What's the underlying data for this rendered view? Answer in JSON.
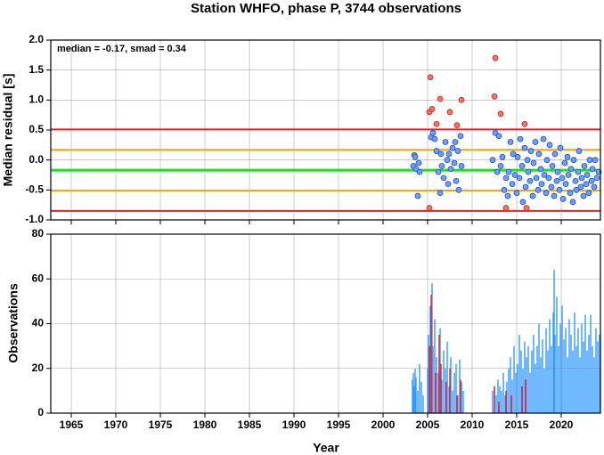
{
  "chart_data": [
    {
      "type": "scatter",
      "title": "Station WHFO, phase P, 3744 observations",
      "ylabel": "Median residual [s]",
      "annotation": "median = -0.17, smad = 0.34",
      "xlim": [
        1962.7,
        2024.4
      ],
      "xticks": [
        1965,
        1970,
        1975,
        1980,
        1985,
        1990,
        1995,
        2000,
        2005,
        2010,
        2015,
        2020
      ],
      "ylim": [
        -1.0,
        2.0
      ],
      "yticks": [
        {
          "value": 2,
          "label": "2.0"
        },
        1.5,
        {
          "value": 1,
          "label": "1.0"
        },
        0.5,
        {
          "value": 0,
          "label": "0.0"
        },
        -0.5,
        {
          "value": -1,
          "label": "-1.0"
        }
      ],
      "grid": true,
      "hlines": [
        {
          "value": 0.51,
          "color": "#e8202a"
        },
        {
          "value": 0.17,
          "color": "#ffa500"
        },
        {
          "value": -0.17,
          "color": "#22dd22"
        },
        {
          "value": -0.51,
          "color": "#ffa500"
        },
        {
          "value": -0.85,
          "color": "#e8202a"
        }
      ],
      "series": [
        {
          "color": "#6f9dff",
          "edge": "#2050c0",
          "x": [
            2003.4,
            2003.5,
            2003.6,
            2003.7,
            2003.9,
            2004.0,
            2004.1,
            2005.4,
            2005.6,
            2005.8,
            2006.0,
            2006.2,
            2006.4,
            2006.5,
            2006.6,
            2006.8,
            2007.0,
            2007.2,
            2007.3,
            2007.4,
            2007.6,
            2007.8,
            2008.0,
            2008.1,
            2008.2,
            2008.4,
            2008.5,
            2008.7,
            2008.8,
            2012.3,
            2012.6,
            2012.8,
            2013.0,
            2013.2,
            2013.4,
            2013.6,
            2013.8,
            2014.0,
            2014.1,
            2014.3,
            2014.5,
            2014.6,
            2014.8,
            2015.0,
            2015.1,
            2015.3,
            2015.4,
            2015.6,
            2015.7,
            2015.9,
            2016.0,
            2016.2,
            2016.3,
            2016.5,
            2016.6,
            2016.8,
            2016.9,
            2017.1,
            2017.2,
            2017.4,
            2017.5,
            2017.7,
            2017.8,
            2018.0,
            2018.1,
            2018.3,
            2018.4,
            2018.6,
            2018.7,
            2018.9,
            2019.0,
            2019.2,
            2019.3,
            2019.5,
            2019.6,
            2019.8,
            2019.9,
            2020.1,
            2020.2,
            2020.4,
            2020.5,
            2020.7,
            2020.8,
            2021.0,
            2021.1,
            2021.3,
            2021.4,
            2021.6,
            2021.7,
            2021.9,
            2022.0,
            2022.2,
            2022.3,
            2022.5,
            2022.6,
            2022.8,
            2022.9,
            2023.1,
            2023.2,
            2023.4,
            2023.5,
            2023.7,
            2023.8,
            2024.0,
            2024.2
          ],
          "values": [
            -0.1,
            0.08,
            0.05,
            -0.15,
            -0.6,
            -0.05,
            -0.2,
            0.38,
            0.45,
            0.35,
            0.15,
            -0.2,
            -0.55,
            0.1,
            -0.1,
            -0.3,
            0.3,
            0.0,
            -0.4,
            0.1,
            -0.15,
            0.2,
            -0.05,
            0.3,
            -0.35,
            0.15,
            -0.5,
            0.4,
            -0.1,
            0.0,
            0.45,
            -0.2,
            0.4,
            -0.1,
            0.05,
            -0.5,
            -0.3,
            -0.6,
            -0.2,
            0.3,
            -0.4,
            0.1,
            -0.25,
            -0.55,
            0.05,
            -0.3,
            0.35,
            -0.1,
            -0.7,
            0.2,
            -0.45,
            0.0,
            -0.2,
            -0.35,
            0.15,
            -0.6,
            -0.05,
            0.3,
            -0.3,
            -0.5,
            0.1,
            -0.15,
            -0.4,
            0.35,
            -0.25,
            -0.55,
            0.0,
            -0.3,
            0.25,
            -0.45,
            -0.1,
            -0.6,
            0.1,
            -0.35,
            -0.2,
            -0.5,
            0.2,
            -0.3,
            -0.65,
            -0.05,
            -0.4,
            0.05,
            -0.25,
            -0.55,
            -0.15,
            -0.7,
            0.0,
            -0.35,
            -0.5,
            -0.2,
            0.15,
            -0.45,
            -0.3,
            -0.6,
            -0.1,
            -0.4,
            -0.25,
            -0.55,
            0.0,
            -0.35,
            -0.15,
            -0.45,
            0.0,
            -0.3,
            -0.2
          ]
        },
        {
          "color": "#ff6f5e",
          "edge": "#b03030",
          "x": [
            2005.3,
            2005.2,
            2005.5,
            2006.0,
            2006.4,
            2007.5,
            2008.3,
            2008.8,
            2005.2,
            2012.6,
            2012.5,
            2013.2,
            2013.8,
            2015.9,
            2016.1
          ],
          "values": [
            1.38,
            0.8,
            0.85,
            0.6,
            1.02,
            0.8,
            0.58,
            1.0,
            -0.8,
            1.7,
            1.06,
            0.77,
            -0.8,
            0.6,
            -0.8
          ]
        }
      ]
    },
    {
      "type": "bar",
      "ylabel": "Observations",
      "xlabel": "Year",
      "xlim": [
        1962.7,
        2024.4
      ],
      "xticks": [
        1965,
        1970,
        1975,
        1980,
        1985,
        1990,
        1995,
        2000,
        2005,
        2010,
        2015,
        2020
      ],
      "ylim": [
        0,
        80
      ],
      "yticks": [
        0,
        20,
        40,
        60,
        80
      ],
      "grid": true,
      "series": [
        {
          "color": "#3399ff",
          "x": [
            2003.3,
            2003.4,
            2003.5,
            2003.6,
            2003.7,
            2003.9,
            2004.1,
            2004.3,
            2004.5,
            2005.0,
            2005.1,
            2005.3,
            2005.5,
            2005.6,
            2005.8,
            2006.0,
            2006.2,
            2006.4,
            2006.6,
            2006.8,
            2007.0,
            2007.2,
            2007.4,
            2007.6,
            2007.8,
            2008.0,
            2008.2,
            2008.4,
            2008.6,
            2008.8,
            2009.0,
            2012.3,
            2012.5,
            2012.7,
            2012.9,
            2013.1,
            2013.3,
            2013.5,
            2013.7,
            2013.9,
            2014.1,
            2014.3,
            2014.5,
            2014.7,
            2014.9,
            2015.1,
            2015.3,
            2015.5,
            2015.7,
            2015.9,
            2016.1,
            2016.3,
            2016.5,
            2016.7,
            2016.9,
            2017.1,
            2017.3,
            2017.5,
            2017.7,
            2017.9,
            2018.1,
            2018.3,
            2018.5,
            2018.7,
            2018.9,
            2019.1,
            2019.2,
            2019.3,
            2019.5,
            2019.7,
            2019.9,
            2020.1,
            2020.3,
            2020.5,
            2020.7,
            2020.9,
            2021.1,
            2021.3,
            2021.5,
            2021.7,
            2021.9,
            2022.1,
            2022.3,
            2022.5,
            2022.7,
            2022.9,
            2023.1,
            2023.3,
            2023.5,
            2023.7,
            2023.9,
            2024.1,
            2024.3
          ],
          "values": [
            15,
            18,
            12,
            20,
            16,
            10,
            22,
            14,
            8,
            20,
            35,
            48,
            58,
            30,
            42,
            25,
            18,
            38,
            15,
            28,
            20,
            32,
            12,
            25,
            10,
            18,
            22,
            8,
            24,
            14,
            10,
            10,
            12,
            8,
            15,
            12,
            10,
            18,
            8,
            14,
            20,
            25,
            15,
            30,
            18,
            22,
            35,
            28,
            20,
            32,
            25,
            30,
            18,
            28,
            35,
            22,
            30,
            40,
            25,
            33,
            20,
            38,
            28,
            42,
            30,
            45,
            64,
            35,
            52,
            30,
            40,
            48,
            33,
            38,
            25,
            42,
            35,
            28,
            45,
            30,
            38,
            25,
            40,
            32,
            44,
            28,
            35,
            44,
            30,
            25,
            38,
            32,
            35
          ]
        },
        {
          "color": "#e8202a",
          "x": [
            2005.2,
            2005.4,
            2005.9,
            2006.3,
            2006.5,
            2007.1,
            2007.5,
            2008.3,
            2008.7,
            2012.5,
            2013.0,
            2013.8,
            2014.4,
            2015.6,
            2016.0
          ],
          "values": [
            30,
            53,
            18,
            35,
            22,
            14,
            20,
            8,
            15,
            12,
            5,
            10,
            8,
            12,
            15
          ]
        }
      ]
    }
  ]
}
